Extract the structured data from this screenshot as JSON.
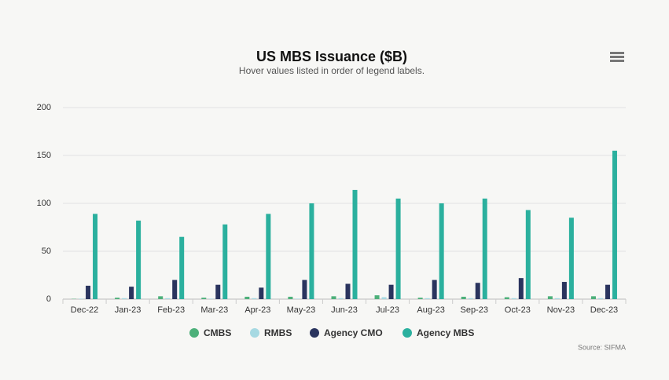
{
  "chart_data": {
    "type": "bar",
    "title": "US MBS Issuance ($B)",
    "subtitle": "Hover values listed in order of legend labels.",
    "source": "Source: SIFMA",
    "categories": [
      "Dec-22",
      "Jan-23",
      "Feb-23",
      "Mar-23",
      "Apr-23",
      "May-23",
      "Jun-23",
      "Jul-23",
      "Aug-23",
      "Sep-23",
      "Oct-23",
      "Nov-23",
      "Dec-23"
    ],
    "series": [
      {
        "name": "CMBS",
        "color": "#4db07a",
        "values": [
          0.3,
          1.5,
          3,
          1.5,
          2.5,
          2.5,
          3,
          4,
          1.5,
          2.5,
          2,
          3,
          3
        ]
      },
      {
        "name": "RMBS",
        "color": "#a6d9e2",
        "values": [
          0.5,
          1,
          1,
          0.5,
          1,
          0.5,
          1,
          2,
          1,
          1,
          1,
          1,
          1
        ]
      },
      {
        "name": "Agency CMO",
        "color": "#2a345e",
        "values": [
          14,
          13,
          20,
          15,
          12,
          20,
          16,
          15,
          20,
          17,
          22,
          18,
          15
        ]
      },
      {
        "name": "Agency MBS",
        "color": "#2bb09e",
        "values": [
          89,
          82,
          65,
          78,
          89,
          100,
          114,
          105,
          100,
          105,
          93,
          85,
          155
        ]
      }
    ],
    "ylim": [
      0,
      200
    ],
    "yticks": [
      0,
      50,
      100,
      150,
      200
    ],
    "grid": true,
    "legend": "bottom"
  }
}
